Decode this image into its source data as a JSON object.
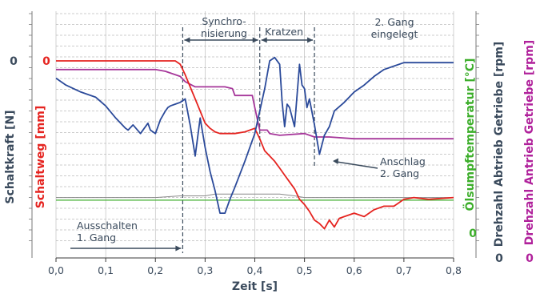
{
  "chart_data": {
    "type": "line",
    "title": "",
    "xlabel": "Zeit [s]",
    "xlim": [
      0.0,
      0.8
    ],
    "x_ticks": [
      "0,0",
      "0,1",
      "0,2",
      "0,3",
      "0,4",
      "0,5",
      "0,6",
      "0,7",
      "0,8"
    ],
    "x_tick_values": [
      0.0,
      0.1,
      0.2,
      0.3,
      0.4,
      0.5,
      0.6,
      0.7,
      0.8
    ],
    "grid": true,
    "y_axes": [
      {
        "id": "schaltkraft",
        "label": "Schaltkraft [N]",
        "color": "#3a4a5c",
        "zero_label": "0"
      },
      {
        "id": "schaltweg",
        "label": "Schaltweg [mm]",
        "color": "#e52420",
        "zero_label": "0"
      },
      {
        "id": "oelsumpf",
        "label": "Ölsumpftemperatur [°C]",
        "color": "#3dae2b",
        "zero_label": "0"
      },
      {
        "id": "abtrieb",
        "label": "Drehzahl Abtrieb Getriebe [rpm]",
        "color": "#3a4a5c",
        "zero_label": "0"
      },
      {
        "id": "antrieb",
        "label": "Drehzahl Antrieb Getriebe [rpm]",
        "color": "#b0219b",
        "zero_label": "0"
      }
    ],
    "ylim_relative": [
      0,
      100
    ],
    "series_colors": {
      "schaltkraft": "#2b4a9a",
      "schaltweg": "#e52420",
      "oelsumpf": "#3dae2b",
      "abtrieb": "#8a8a8a",
      "antrieb": "#a6379a"
    },
    "series": [
      {
        "axis": "schaltkraft",
        "x": [
          0.0,
          0.02,
          0.05,
          0.08,
          0.1,
          0.12,
          0.14,
          0.145,
          0.155,
          0.17,
          0.185,
          0.19,
          0.2,
          0.21,
          0.22,
          0.225,
          0.23,
          0.24,
          0.25,
          0.26,
          0.27,
          0.28,
          0.29,
          0.3,
          0.31,
          0.32,
          0.33,
          0.34,
          0.35,
          0.36,
          0.38,
          0.4,
          0.42,
          0.43,
          0.44,
          0.45,
          0.455,
          0.46,
          0.465,
          0.47,
          0.48,
          0.49,
          0.495,
          0.5,
          0.505,
          0.51,
          0.52,
          0.53,
          0.54,
          0.55,
          0.56,
          0.58,
          0.6,
          0.62,
          0.64,
          0.66,
          0.68,
          0.7,
          0.75,
          0.8
        ],
        "y": [
          90,
          86,
          82,
          79,
          74,
          67,
          61,
          60,
          63,
          58,
          64,
          60,
          58,
          66,
          71,
          73,
          74,
          75,
          76,
          78,
          63,
          45,
          67,
          50,
          36,
          25,
          12,
          12,
          20,
          27,
          42,
          58,
          84,
          100,
          102,
          98,
          76,
          62,
          75,
          73,
          62,
          98,
          86,
          84,
          73,
          78,
          63,
          46,
          57,
          62,
          71,
          76,
          82,
          86,
          91,
          95,
          97,
          99,
          99,
          99
        ]
      },
      {
        "axis": "schaltweg",
        "x": [
          0.0,
          0.05,
          0.1,
          0.15,
          0.2,
          0.22,
          0.24,
          0.25,
          0.26,
          0.27,
          0.28,
          0.29,
          0.3,
          0.31,
          0.32,
          0.33,
          0.34,
          0.36,
          0.38,
          0.4,
          0.41,
          0.42,
          0.43,
          0.44,
          0.45,
          0.46,
          0.47,
          0.48,
          0.49,
          0.5,
          0.51,
          0.52,
          0.53,
          0.54,
          0.55,
          0.56,
          0.57,
          0.58,
          0.6,
          0.62,
          0.64,
          0.66,
          0.68,
          0.7,
          0.72,
          0.75,
          0.8
        ],
        "y": [
          100,
          100,
          100,
          100,
          100,
          100,
          100,
          98,
          92,
          85,
          78,
          71,
          64,
          61,
          59,
          58,
          58,
          58,
          59,
          61,
          55,
          48,
          45,
          42,
          38,
          34,
          30,
          26,
          20,
          17,
          13,
          8,
          6,
          3,
          8,
          4,
          9,
          10,
          12,
          10,
          14,
          16,
          16,
          20,
          21,
          20,
          21
        ]
      },
      {
        "axis": "oelsumpf",
        "x": [
          0.0,
          0.1,
          0.2,
          0.3,
          0.4,
          0.5,
          0.6,
          0.7,
          0.8
        ],
        "y": [
          19.5,
          19.5,
          19.5,
          19.5,
          19.5,
          19.5,
          19.5,
          19.5,
          19.5
        ]
      },
      {
        "axis": "abtrieb",
        "x": [
          0.0,
          0.1,
          0.2,
          0.25,
          0.3,
          0.32,
          0.35,
          0.4,
          0.45,
          0.48,
          0.5,
          0.52,
          0.55,
          0.6,
          0.7,
          0.8
        ],
        "y": [
          21,
          21,
          21,
          22,
          22,
          23,
          23,
          23,
          23,
          22,
          21,
          21,
          21,
          21,
          21,
          21
        ]
      },
      {
        "axis": "antrieb",
        "x": [
          0.0,
          0.1,
          0.2,
          0.22,
          0.25,
          0.26,
          0.28,
          0.34,
          0.355,
          0.36,
          0.38,
          0.395,
          0.4,
          0.41,
          0.425,
          0.43,
          0.45,
          0.5,
          0.52,
          0.55,
          0.6,
          0.7,
          0.8
        ],
        "y": [
          95,
          95,
          95,
          94,
          91,
          88,
          85,
          85,
          84,
          80,
          80,
          80,
          73,
          60,
          60,
          58,
          57,
          58,
          56,
          56,
          55,
          55,
          55
        ]
      }
    ],
    "annotations": [
      {
        "text": "Ausschalten\n1. Gang",
        "color": "#3a4a5c"
      },
      {
        "text": "Synchro-\nnisierung",
        "color": "#3a4a5c"
      },
      {
        "text": "Kratzen",
        "color": "#3a4a5c"
      },
      {
        "text": "2. Gang\neingelegt",
        "color": "#3a4a5c"
      },
      {
        "text": "Anschlag\n2. Gang",
        "color": "#3a4a5c"
      }
    ]
  }
}
